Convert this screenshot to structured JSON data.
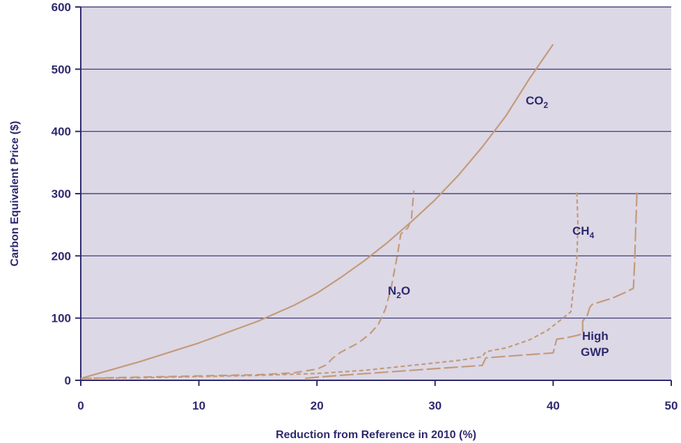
{
  "chart_data": {
    "type": "line",
    "xlabel": "Reduction from Reference in 2010 (%)",
    "ylabel": "Carbon Equivalent Price ($)",
    "xlim": [
      0,
      50
    ],
    "ylim": [
      0,
      600
    ],
    "x_ticks": [
      "0",
      "10",
      "20",
      "30",
      "40",
      "50"
    ],
    "y_ticks": [
      "0",
      "100",
      "200",
      "300",
      "400",
      "500",
      "600"
    ],
    "grid": "horizontal",
    "colors": {
      "plot_background": "#dcd8e6",
      "gridline": "#2e2a6e",
      "axis": "#2e2a6e",
      "series": "#c49a7a",
      "text": "#2e2a6e"
    },
    "series": [
      {
        "name": "CO2",
        "label_parts": [
          "CO",
          "2",
          ""
        ],
        "line_style": "solid",
        "points": [
          [
            0,
            3
          ],
          [
            5,
            30
          ],
          [
            10,
            60
          ],
          [
            15,
            95
          ],
          [
            18,
            120
          ],
          [
            20,
            140
          ],
          [
            22,
            165
          ],
          [
            24,
            192
          ],
          [
            26,
            222
          ],
          [
            28,
            255
          ],
          [
            30,
            290
          ],
          [
            32,
            330
          ],
          [
            34,
            375
          ],
          [
            36,
            425
          ],
          [
            38,
            485
          ],
          [
            40,
            540
          ]
        ]
      },
      {
        "name": "N2O",
        "label_parts": [
          "N",
          "2",
          "O"
        ],
        "line_style": "dashed",
        "points": [
          [
            0,
            3
          ],
          [
            5,
            5
          ],
          [
            10,
            7
          ],
          [
            15,
            9
          ],
          [
            18,
            12
          ],
          [
            20,
            18
          ],
          [
            20.8,
            25
          ],
          [
            21.3,
            35
          ],
          [
            22,
            45
          ],
          [
            23.5,
            60
          ],
          [
            24.5,
            75
          ],
          [
            25.2,
            90
          ],
          [
            25.8,
            115
          ],
          [
            26.3,
            150
          ],
          [
            26.8,
            200
          ],
          [
            27.1,
            235
          ],
          [
            27.7,
            245
          ],
          [
            28,
            260
          ],
          [
            28.2,
            305
          ]
        ]
      },
      {
        "name": "CH4",
        "label_parts": [
          "CH",
          "4",
          ""
        ],
        "line_style": "short-dashed",
        "points": [
          [
            0,
            3
          ],
          [
            5,
            4
          ],
          [
            10,
            6
          ],
          [
            15,
            8
          ],
          [
            20,
            11
          ],
          [
            24,
            16
          ],
          [
            28,
            24
          ],
          [
            32,
            32
          ],
          [
            34,
            38
          ],
          [
            34.3,
            46
          ],
          [
            36,
            52
          ],
          [
            38,
            65
          ],
          [
            39.5,
            80
          ],
          [
            40.5,
            95
          ],
          [
            41.5,
            110
          ],
          [
            41.7,
            145
          ],
          [
            42,
            190
          ],
          [
            42.1,
            250
          ],
          [
            42,
            305
          ]
        ]
      },
      {
        "name": "High GWP",
        "label_parts": [
          "High",
          "GWP"
        ],
        "line_style": "long-dashed",
        "points": [
          [
            19,
            3
          ],
          [
            20,
            5
          ],
          [
            22,
            8
          ],
          [
            25,
            12
          ],
          [
            28,
            16
          ],
          [
            31,
            20
          ],
          [
            34,
            24
          ],
          [
            34.3,
            36
          ],
          [
            37,
            40
          ],
          [
            40,
            44
          ],
          [
            40.3,
            66
          ],
          [
            41,
            68
          ],
          [
            42,
            72
          ],
          [
            42.5,
            75
          ],
          [
            42.5,
            95
          ],
          [
            42.9,
            105
          ],
          [
            43.1,
            117
          ],
          [
            43.3,
            122
          ],
          [
            45,
            132
          ],
          [
            46.2,
            142
          ],
          [
            46.8,
            148
          ],
          [
            46.9,
            190
          ],
          [
            47,
            250
          ],
          [
            47.1,
            303
          ]
        ]
      }
    ]
  }
}
